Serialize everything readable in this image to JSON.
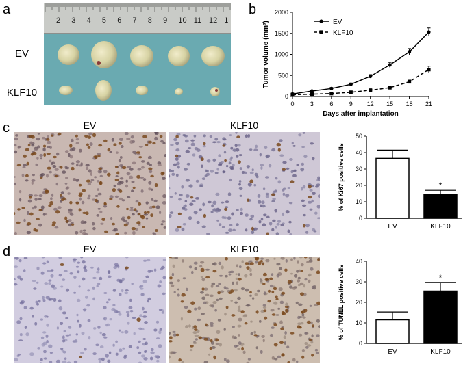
{
  "panels": {
    "a": {
      "letter": "a",
      "row_labels": [
        "EV",
        "KLF10"
      ],
      "ruler_numbers": [
        "2",
        "3",
        "4",
        "5",
        "6",
        "7",
        "8",
        "9",
        "10",
        "11",
        "12",
        "1"
      ]
    },
    "b": {
      "letter": "b",
      "chart_data": {
        "type": "line",
        "xlabel": "Days after implantation",
        "ylabel": "Tumor volume (mm³)",
        "x": [
          0,
          3,
          6,
          9,
          12,
          15,
          18,
          21
        ],
        "xlim": [
          0,
          21
        ],
        "ylim": [
          0,
          2000
        ],
        "xticks": [
          "0",
          "3",
          "6",
          "9",
          "12",
          "15",
          "18",
          "21"
        ],
        "yticks": [
          "0",
          "500",
          "1000",
          "1500",
          "2000"
        ],
        "legend_position": "top-left",
        "series": [
          {
            "name": "EV",
            "style": "solid",
            "values": [
              60,
              130,
              190,
              290,
              480,
              750,
              1060,
              1530
            ],
            "errors": [
              20,
              20,
              25,
              30,
              40,
              60,
              80,
              100
            ]
          },
          {
            "name": "KLF10",
            "style": "dashed",
            "values": [
              40,
              55,
              70,
              100,
              150,
              210,
              350,
              640
            ],
            "errors": [
              10,
              10,
              12,
              15,
              20,
              25,
              40,
              80
            ]
          }
        ]
      }
    },
    "c": {
      "letter": "c",
      "image_labels": [
        "EV",
        "KLF10"
      ],
      "chart_data": {
        "type": "bar",
        "categories": [
          "EV",
          "KLF10"
        ],
        "values": [
          36.5,
          14.5
        ],
        "errors": [
          5,
          2.5
        ],
        "ylabel": "% of Ki67 positive cells",
        "ylim": [
          0,
          50
        ],
        "yticks": [
          "0",
          "10",
          "20",
          "30",
          "40",
          "50"
        ],
        "annotation": "*",
        "fills": [
          "#ffffff",
          "#000000"
        ]
      }
    },
    "d": {
      "letter": "d",
      "image_labels": [
        "EV",
        "KLF10"
      ],
      "chart_data": {
        "type": "bar",
        "categories": [
          "EV",
          "KLF10"
        ],
        "values": [
          11.5,
          25.5
        ],
        "errors": [
          3.8,
          4.2
        ],
        "ylabel": "% of TUNEL positive cells",
        "ylim": [
          0,
          40
        ],
        "yticks": [
          "0",
          "10",
          "20",
          "30",
          "40"
        ],
        "annotation": "*",
        "fills": [
          "#ffffff",
          "#000000"
        ]
      }
    }
  }
}
